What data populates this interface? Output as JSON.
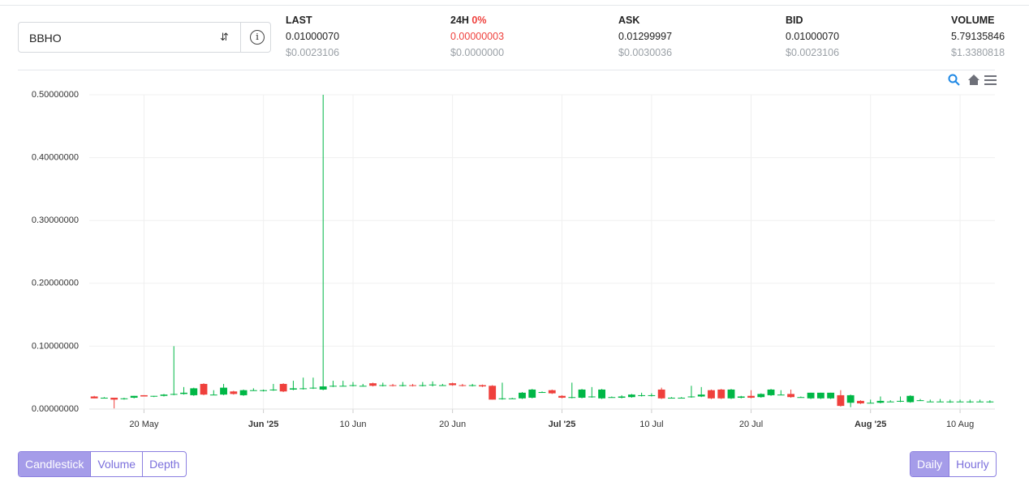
{
  "header": {
    "pair": "BBHO",
    "stats": [
      {
        "label": "LAST",
        "value": "0.01000070",
        "usd": "$0.0023106"
      },
      {
        "label": "24H",
        "change": "0%",
        "value": "0.00000003",
        "usd": "$0.0000000"
      },
      {
        "label": "ASK",
        "value": "0.01299997",
        "usd": "$0.0030036"
      },
      {
        "label": "BID",
        "value": "0.01000070",
        "usd": "$0.0023106"
      },
      {
        "label": "VOLUME",
        "value": "5.79135846",
        "usd": "$1.3380818"
      }
    ]
  },
  "controls": {
    "chart_types": [
      "Candlestick",
      "Volume",
      "Depth"
    ],
    "intervals": [
      "Daily",
      "Hourly"
    ]
  },
  "chart_data": {
    "type": "candlestick",
    "up_color": "#00b746",
    "down_color": "#ef403c",
    "grid": true,
    "x": [
      "2025-05-15",
      "2025-05-16",
      "2025-05-17",
      "2025-05-18",
      "2025-05-19",
      "2025-05-20",
      "2025-05-21",
      "2025-05-22",
      "2025-05-23",
      "2025-05-24",
      "2025-05-25",
      "2025-05-26",
      "2025-05-27",
      "2025-05-28",
      "2025-05-29",
      "2025-05-30",
      "2025-05-31",
      "2025-06-01",
      "2025-06-02",
      "2025-06-03",
      "2025-06-04",
      "2025-06-05",
      "2025-06-06",
      "2025-06-07",
      "2025-06-08",
      "2025-06-09",
      "2025-06-10",
      "2025-06-11",
      "2025-06-12",
      "2025-06-13",
      "2025-06-14",
      "2025-06-15",
      "2025-06-16",
      "2025-06-17",
      "2025-06-18",
      "2025-06-19",
      "2025-06-20",
      "2025-06-21",
      "2025-06-22",
      "2025-06-23",
      "2025-06-24",
      "2025-06-25",
      "2025-06-26",
      "2025-06-27",
      "2025-06-28",
      "2025-06-29",
      "2025-06-30",
      "2025-07-01",
      "2025-07-02",
      "2025-07-03",
      "2025-07-04",
      "2025-07-05",
      "2025-07-06",
      "2025-07-07",
      "2025-07-08",
      "2025-07-09",
      "2025-07-10",
      "2025-07-11",
      "2025-07-12",
      "2025-07-13",
      "2025-07-14",
      "2025-07-15",
      "2025-07-16",
      "2025-07-17",
      "2025-07-18",
      "2025-07-19",
      "2025-07-20",
      "2025-07-21",
      "2025-07-22",
      "2025-07-23",
      "2025-07-24",
      "2025-07-25",
      "2025-07-26",
      "2025-07-27",
      "2025-07-28",
      "2025-07-29",
      "2025-07-30",
      "2025-07-31",
      "2025-08-01",
      "2025-08-02",
      "2025-08-03",
      "2025-08-04",
      "2025-08-05",
      "2025-08-06",
      "2025-08-07",
      "2025-08-08",
      "2025-08-09",
      "2025-08-10",
      "2025-08-11",
      "2025-08-12",
      "2025-08-13"
    ],
    "open": [
      0.02,
      0.018,
      0.018,
      0.016,
      0.018,
      0.022,
      0.02,
      0.021,
      0.023,
      0.024,
      0.022,
      0.04,
      0.023,
      0.023,
      0.028,
      0.022,
      0.03,
      0.029,
      0.03,
      0.04,
      0.031,
      0.032,
      0.033,
      0.031,
      0.036,
      0.037,
      0.037,
      0.037,
      0.041,
      0.037,
      0.038,
      0.037,
      0.038,
      0.037,
      0.038,
      0.038,
      0.041,
      0.038,
      0.037,
      0.038,
      0.037,
      0.016,
      0.017,
      0.017,
      0.018,
      0.027,
      0.03,
      0.021,
      0.018,
      0.018,
      0.019,
      0.017,
      0.019,
      0.018,
      0.019,
      0.021,
      0.021,
      0.031,
      0.018,
      0.018,
      0.019,
      0.02,
      0.03,
      0.031,
      0.017,
      0.018,
      0.021,
      0.019,
      0.022,
      0.023,
      0.024,
      0.019,
      0.017,
      0.017,
      0.017,
      0.022,
      0.01,
      0.013,
      0.01,
      0.01,
      0.012,
      0.012,
      0.011,
      0.014,
      0.012,
      0.012,
      0.011,
      0.012,
      0.011,
      0.012,
      0.011
    ],
    "high": [
      0.021,
      0.019,
      0.018,
      0.018,
      0.021,
      0.022,
      0.021,
      0.024,
      0.1,
      0.035,
      0.034,
      0.041,
      0.03,
      0.04,
      0.029,
      0.031,
      0.033,
      0.031,
      0.04,
      0.041,
      0.045,
      0.05,
      0.05,
      0.5,
      0.045,
      0.045,
      0.043,
      0.04,
      0.042,
      0.042,
      0.04,
      0.043,
      0.04,
      0.043,
      0.044,
      0.04,
      0.042,
      0.04,
      0.04,
      0.039,
      0.038,
      0.042,
      0.018,
      0.027,
      0.032,
      0.028,
      0.031,
      0.022,
      0.042,
      0.032,
      0.035,
      0.032,
      0.02,
      0.022,
      0.024,
      0.026,
      0.025,
      0.034,
      0.019,
      0.019,
      0.037,
      0.035,
      0.031,
      0.032,
      0.032,
      0.021,
      0.03,
      0.025,
      0.032,
      0.03,
      0.031,
      0.02,
      0.026,
      0.026,
      0.026,
      0.03,
      0.023,
      0.014,
      0.015,
      0.02,
      0.014,
      0.02,
      0.022,
      0.016,
      0.015,
      0.016,
      0.015,
      0.015,
      0.015,
      0.015,
      0.014
    ],
    "low": [
      0.017,
      0.017,
      0.001,
      0.015,
      0.017,
      0.02,
      0.019,
      0.02,
      0.022,
      0.023,
      0.021,
      0.022,
      0.022,
      0.022,
      0.023,
      0.021,
      0.029,
      0.028,
      0.029,
      0.027,
      0.03,
      0.031,
      0.032,
      0.03,
      0.035,
      0.036,
      0.036,
      0.036,
      0.036,
      0.036,
      0.036,
      0.036,
      0.036,
      0.036,
      0.036,
      0.037,
      0.037,
      0.036,
      0.036,
      0.035,
      0.015,
      0.015,
      0.016,
      0.016,
      0.017,
      0.026,
      0.024,
      0.017,
      0.017,
      0.017,
      0.018,
      0.016,
      0.018,
      0.017,
      0.018,
      0.02,
      0.02,
      0.016,
      0.017,
      0.017,
      0.018,
      0.019,
      0.016,
      0.016,
      0.016,
      0.017,
      0.017,
      0.018,
      0.021,
      0.022,
      0.018,
      0.018,
      0.016,
      0.016,
      0.016,
      0.004,
      0.003,
      0.008,
      0.009,
      0.009,
      0.011,
      0.011,
      0.01,
      0.013,
      0.011,
      0.011,
      0.01,
      0.011,
      0.01,
      0.011,
      0.01
    ],
    "close": [
      0.017,
      0.018,
      0.015,
      0.017,
      0.021,
      0.02,
      0.021,
      0.023,
      0.024,
      0.026,
      0.033,
      0.023,
      0.023,
      0.034,
      0.024,
      0.03,
      0.03,
      0.03,
      0.031,
      0.028,
      0.033,
      0.033,
      0.034,
      0.036,
      0.037,
      0.037,
      0.038,
      0.037,
      0.037,
      0.038,
      0.037,
      0.038,
      0.037,
      0.038,
      0.039,
      0.038,
      0.038,
      0.037,
      0.038,
      0.036,
      0.015,
      0.017,
      0.017,
      0.026,
      0.031,
      0.027,
      0.025,
      0.018,
      0.019,
      0.031,
      0.02,
      0.031,
      0.019,
      0.02,
      0.023,
      0.022,
      0.022,
      0.017,
      0.018,
      0.018,
      0.02,
      0.023,
      0.017,
      0.017,
      0.031,
      0.02,
      0.018,
      0.024,
      0.031,
      0.023,
      0.019,
      0.019,
      0.026,
      0.026,
      0.026,
      0.005,
      0.022,
      0.009,
      0.01,
      0.013,
      0.012,
      0.013,
      0.021,
      0.014,
      0.012,
      0.012,
      0.012,
      0.012,
      0.012,
      0.012,
      0.012
    ],
    "ylim": [
      0,
      0.5
    ],
    "yticks": [
      {
        "value": 0,
        "label": "0.00000000"
      },
      {
        "value": 0.1,
        "label": "0.10000000"
      },
      {
        "value": 0.2,
        "label": "0.20000000"
      },
      {
        "value": 0.3,
        "label": "0.30000000"
      },
      {
        "value": 0.4,
        "label": "0.40000000"
      },
      {
        "value": 0.5,
        "label": "0.50000000"
      }
    ],
    "xlim": [
      "2025-05-15",
      "2025-08-13"
    ],
    "xticks": [
      {
        "value": "2025-05-20",
        "label": "20 May"
      },
      {
        "value": "2025-06-01",
        "label": "Jun '25"
      },
      {
        "value": "2025-06-10",
        "label": "10 Jun"
      },
      {
        "value": "2025-06-20",
        "label": "20 Jun"
      },
      {
        "value": "2025-07-01",
        "label": "Jul '25"
      },
      {
        "value": "2025-07-10",
        "label": "10 Jul"
      },
      {
        "value": "2025-07-20",
        "label": "20 Jul"
      },
      {
        "value": "2025-08-01",
        "label": "Aug '25"
      },
      {
        "value": "2025-08-10",
        "label": "10 Aug"
      }
    ]
  }
}
